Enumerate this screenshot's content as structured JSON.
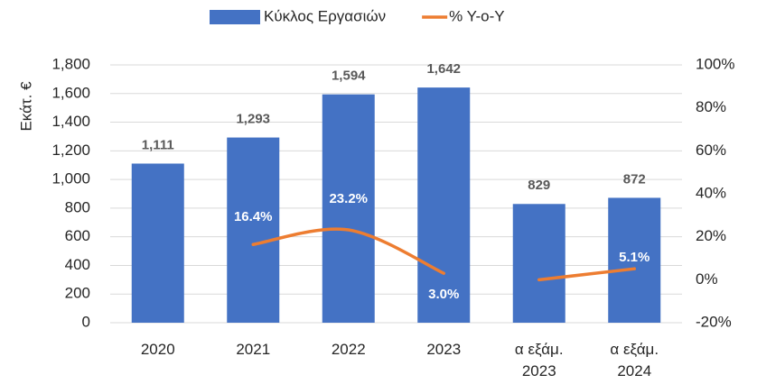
{
  "chart_data": {
    "type": "combo",
    "y_label": "Εκάτ. €",
    "categories": [
      "2020",
      "2021",
      "2022",
      "2023",
      "α εξάμ. 2023",
      "α εξάμ. 2024"
    ],
    "series": [
      {
        "name": "Κύκλος Εργασιών",
        "type": "bar",
        "color": "#4472c4",
        "values": [
          1111,
          1293,
          1594,
          1642,
          829,
          872
        ],
        "value_labels": [
          "1,111",
          "1,293",
          "1,594",
          "1,642",
          "829",
          "872"
        ]
      },
      {
        "name": "% Y-o-Y",
        "type": "line",
        "axis": "y2",
        "color": "#ed7d31",
        "values": [
          null,
          16.4,
          23.2,
          3.0,
          null,
          null
        ],
        "value_labels": [
          null,
          "16.4%",
          "23.2%",
          "3.0%",
          null,
          null
        ]
      },
      {
        "type": "line",
        "axis": "y2",
        "color": "#ed7d31",
        "values": [
          null,
          null,
          null,
          null,
          0,
          5.1
        ],
        "value_labels": [
          null,
          null,
          null,
          null,
          null,
          "5.1%"
        ]
      }
    ],
    "ylim": [
      0,
      1800
    ],
    "yticks": [
      0,
      200,
      400,
      600,
      800,
      {
        "value": 1000,
        "label": "1,000"
      },
      {
        "value": 1200,
        "label": "1,200"
      },
      {
        "value": 1400,
        "label": "1,400"
      },
      {
        "value": 1600,
        "label": "1,600"
      },
      {
        "value": 1800,
        "label": "1,800"
      }
    ],
    "y2lim": [
      -20,
      100
    ],
    "y2ticks": [
      {
        "value": -20,
        "label": "-20%"
      },
      {
        "value": 0,
        "label": "0%"
      },
      {
        "value": 20,
        "label": "20%"
      },
      {
        "value": 40,
        "label": "40%"
      },
      {
        "value": 60,
        "label": "60%"
      },
      {
        "value": 80,
        "label": "80%"
      },
      {
        "value": 100,
        "label": "100%"
      }
    ],
    "grid": true,
    "legend": "top"
  }
}
